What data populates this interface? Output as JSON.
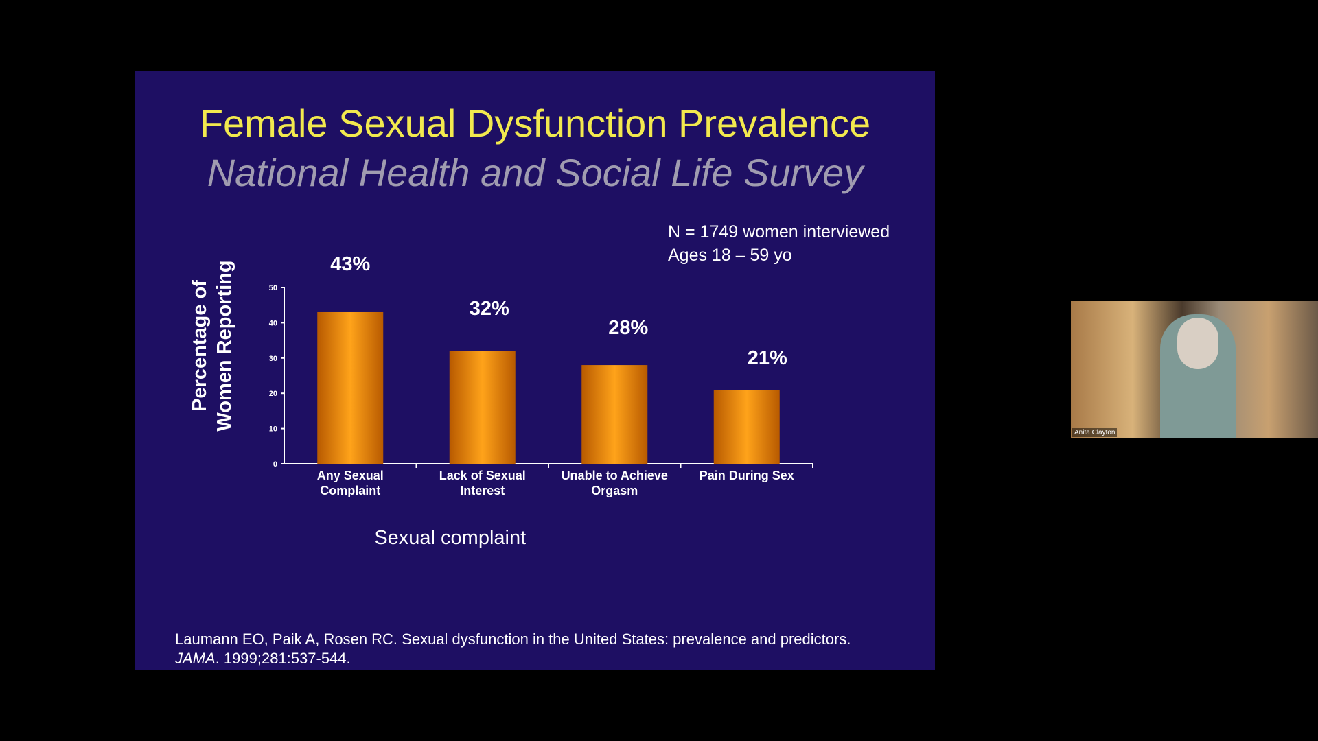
{
  "slide": {
    "title": "Female Sexual Dysfunction Prevalence",
    "subtitle": "National Health and Social Life Survey",
    "annotation": "N = 1749 women interviewed\nAges 18 – 59 yo",
    "citation": {
      "text": "Laumann EO, Paik A, Rosen RC. Sexual dysfunction in the United States: prevalence and predictors.",
      "journal": "JAMA",
      "details": ". 1999;281:537-544."
    }
  },
  "chart_data": {
    "type": "bar",
    "categories": [
      "Any Sexual\nComplaint",
      "Lack of Sexual\nInterest",
      "Unable to Achieve\nOrgasm",
      "Pain During Sex"
    ],
    "values": [
      43,
      32,
      28,
      21
    ],
    "value_labels": [
      "43%",
      "32%",
      "28%",
      "21%"
    ],
    "color": "#ff9a00",
    "ylim": [
      0,
      50
    ],
    "yticks": [
      0,
      10,
      20,
      30,
      40,
      50
    ],
    "ylabel": "Percentage of\nWomen Reporting",
    "xlabel": "Sexual complaint"
  },
  "video_tile": {
    "name": "Anita Clayton"
  }
}
